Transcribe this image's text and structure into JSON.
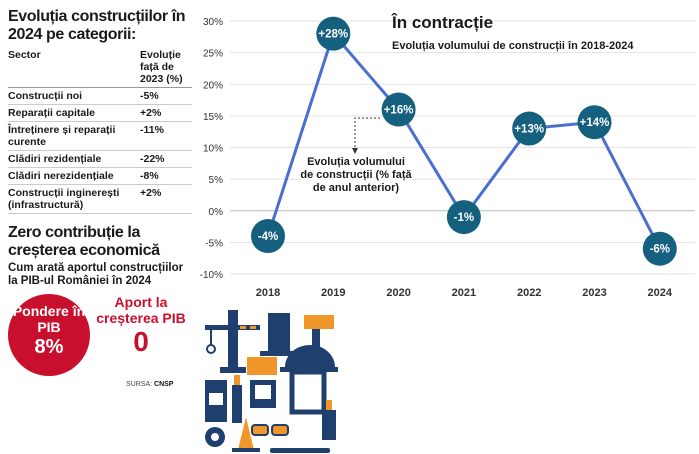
{
  "left": {
    "title": "Evoluția construcțiilor în 2024 pe categorii:",
    "table": {
      "headers": [
        "Sector",
        "Evoluție față de 2023 (%)"
      ],
      "rows": [
        [
          "Construcții noi",
          "-5%"
        ],
        [
          "Reparații capitale",
          "+2%"
        ],
        [
          "Întreținere și reparații curente",
          "-11%"
        ],
        [
          "Clădiri rezidențiale",
          "-22%"
        ],
        [
          "Clădiri nerezidențiale",
          "-8%"
        ],
        [
          "Construcții inginerești (infrastructură)",
          "+2%"
        ]
      ]
    },
    "title2": "Zero contribuție la creșterea economică",
    "subtitle2": "Cum arată aportul construcțiilor la PIB-ul României în 2024",
    "pondere_label": "Pondere în PIB",
    "pondere_value": "8%",
    "aport_label": "Aport la creșterea PIB",
    "aport_value": "0",
    "source_label": "SURSA:",
    "source": "CNSP"
  },
  "colors": {
    "line": "#4a6fd0",
    "marker": "#16607f",
    "red": "#c8102e",
    "navy": "#1f3f6e",
    "orange": "#f0962a"
  },
  "chart_data": {
    "type": "line",
    "title": "În contracție",
    "subtitle": "Evoluția volumului de construcții în 2018-2024",
    "annotation": "Evoluția volumului de construcții (% față de anul anterior)",
    "categories": [
      "2018",
      "2019",
      "2020",
      "2021",
      "2022",
      "2023",
      "2024"
    ],
    "values": [
      -4,
      28,
      16,
      -1,
      13,
      14,
      -6
    ],
    "labels": [
      "-4%",
      "+28%",
      "+16%",
      "-1%",
      "+13%",
      "+14%",
      "-6%"
    ],
    "ylim": [
      -10,
      30
    ],
    "yticks": [
      "-10%",
      "-5%",
      "0%",
      "5%",
      "10%",
      "15%",
      "20%",
      "25%",
      "30%"
    ],
    "grid": true
  }
}
